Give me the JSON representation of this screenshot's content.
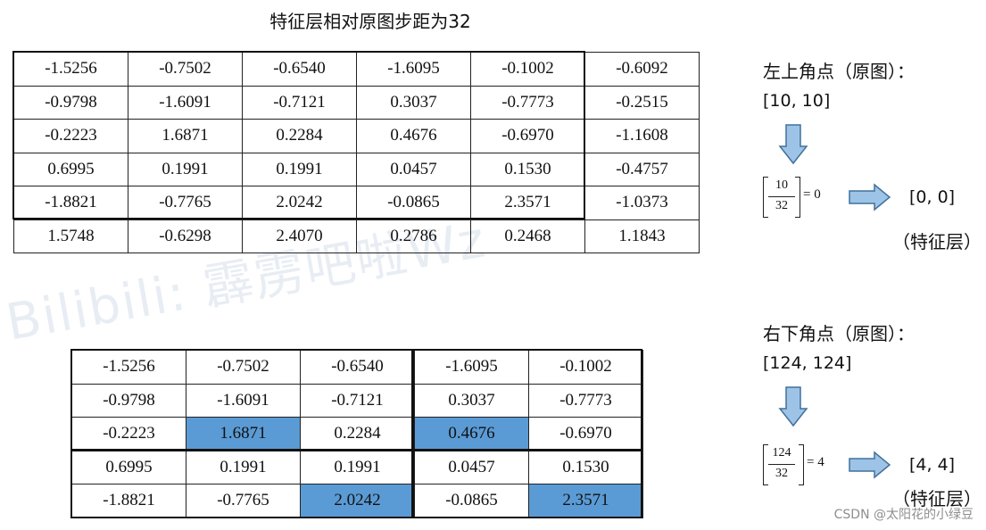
{
  "title": "特征层相对原图步距为32",
  "watermark": "Bilibili: 霹雳吧啦Wz",
  "csdn_credit": "CSDN @太阳花的小绿豆",
  "top_table": [
    [
      "-1.5256",
      "-0.7502",
      "-0.6540",
      "-1.6095",
      "-0.1002",
      "-0.6092"
    ],
    [
      "-0.9798",
      "-1.6091",
      "-0.7121",
      "0.3037",
      "-0.7773",
      "-0.2515"
    ],
    [
      "-0.2223",
      "1.6871",
      "0.2284",
      "0.4676",
      "-0.6970",
      "-1.1608"
    ],
    [
      "0.6995",
      "0.1991",
      "0.1991",
      "0.0457",
      "0.1530",
      "-0.4757"
    ],
    [
      "-1.8821",
      "-0.7765",
      "2.0242",
      "-0.0865",
      "2.3571",
      "-1.0373"
    ],
    [
      "1.5748",
      "-0.6298",
      "2.4070",
      "0.2786",
      "0.2468",
      "1.1843"
    ]
  ],
  "bottom_table": [
    [
      "-1.5256",
      "-0.7502",
      "-0.6540",
      "-1.6095",
      "-0.1002"
    ],
    [
      "-0.9798",
      "-1.6091",
      "-0.7121",
      "0.3037",
      "-0.7773"
    ],
    [
      "-0.2223",
      "1.6871",
      "0.2284",
      "0.4676",
      "-0.6970"
    ],
    [
      "0.6995",
      "0.1991",
      "0.1991",
      "0.0457",
      "0.1530"
    ],
    [
      "-1.8821",
      "-0.7765",
      "2.0242",
      "-0.0865",
      "2.3571"
    ]
  ],
  "highlight_cells": [
    [
      2,
      1
    ],
    [
      2,
      3
    ],
    [
      4,
      2
    ],
    [
      4,
      4
    ]
  ],
  "highlight_color": "#5b9bd5",
  "top_left": {
    "label": "左上角点（原图）：",
    "coord": "[10, 10]",
    "numerator": "10",
    "denominator": "32",
    "equals": "= 0",
    "result": "[0, 0]",
    "result_label": "（特征层）"
  },
  "bottom_right": {
    "label": "右下角点（原图）：",
    "coord": "[124, 124]",
    "numerator": "124",
    "denominator": "32",
    "equals": "= 4",
    "result": "[4, 4]",
    "result_label": "（特征层）"
  },
  "arrow_color": "#9dc3e6",
  "arrow_stroke": "#41719c"
}
